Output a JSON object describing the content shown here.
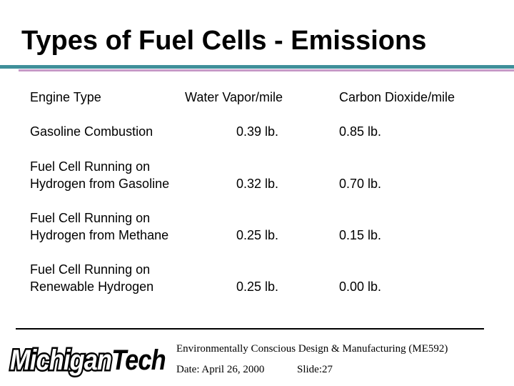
{
  "slide": {
    "title": "Types of Fuel Cells - Emissions"
  },
  "table": {
    "headers": {
      "engine": "Engine Type",
      "water": "Water Vapor/mile",
      "co2": "Carbon Dioxide/mile"
    },
    "rows": [
      {
        "engine_line1": "Gasoline Combustion",
        "engine_line2": "",
        "water": "0.39 lb.",
        "co2": "0.85 lb."
      },
      {
        "engine_line1": "Fuel Cell Running on",
        "engine_line2": "Hydrogen from Gasoline",
        "water": "0.32 lb.",
        "co2": "0.70 lb."
      },
      {
        "engine_line1": "Fuel Cell Running on",
        "engine_line2": "Hydrogen from Methane",
        "water": "0.25 lb.",
        "co2": "0.15 lb."
      },
      {
        "engine_line1": "Fuel Cell Running on",
        "engine_line2": "Renewable Hydrogen",
        "water": "0.25 lb.",
        "co2": "0.00 lb."
      }
    ]
  },
  "footer": {
    "logo_part1": "Michigan",
    "logo_part2": "Tech",
    "course": "Environmentally Conscious Design & Manufacturing (ME592)",
    "date": "Date: April 26, 2000",
    "slide_number": "Slide:27"
  },
  "colors": {
    "title_rule": "#3f8f9a",
    "accent_rule": "#c79ac7"
  }
}
